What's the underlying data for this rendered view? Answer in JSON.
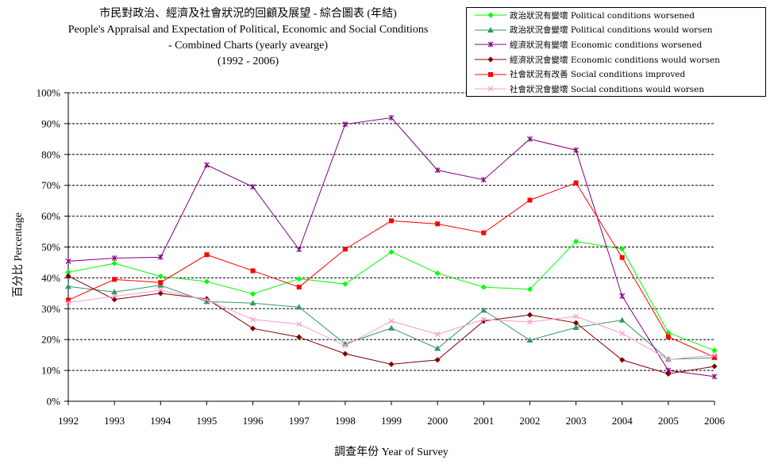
{
  "chart_data": {
    "type": "line",
    "title_lines": [
      "市民對政治、經濟及社會狀況的回顧及展望 - 綜合圖表 (年結)",
      "People's Appraisal and Expectation of Political, Economic and Social Conditions",
      "- Combined Charts  (yearly avearge)",
      "(1992 - 2006)"
    ],
    "xlabel": "調查年份 Year of Survey",
    "ylabel": "百分比 Percentage",
    "x": [
      1992,
      1993,
      1994,
      1995,
      1996,
      1997,
      1998,
      1999,
      2000,
      2001,
      2002,
      2003,
      2004,
      2005,
      2006
    ],
    "ylim": [
      0,
      100
    ],
    "y_ticks": [
      "0%",
      "10%",
      "20%",
      "30%",
      "40%",
      "50%",
      "60%",
      "70%",
      "80%",
      "90%",
      "100%"
    ],
    "grid": "horizontal dashed",
    "legend_position": "top-right",
    "series": [
      {
        "name": "政治狀況有變壞 Political conditions worsened",
        "color": "#00ff00",
        "marker": "diamond",
        "values": [
          41.8,
          44.7,
          40.5,
          38.8,
          34.8,
          39.7,
          38.0,
          48.4,
          41.5,
          37.0,
          36.3,
          51.8,
          49.4,
          22.2,
          16.5
        ]
      },
      {
        "name": "政治狀況會變壞 Political conditions would worsen",
        "color": "#339966",
        "marker": "triangle",
        "values": [
          37.2,
          35.4,
          37.6,
          32.3,
          31.8,
          30.5,
          18.6,
          23.7,
          17.1,
          29.5,
          19.8,
          23.9,
          26.3,
          13.6,
          14.1
        ]
      },
      {
        "name": "經濟狀況有變壞 Economic conditions worsened",
        "color": "#800080",
        "marker": "asterisk",
        "values": [
          45.4,
          46.4,
          46.7,
          76.6,
          69.5,
          49.2,
          89.8,
          91.9,
          74.9,
          71.8,
          85.0,
          81.4,
          34.1,
          10.0,
          8.0
        ]
      },
      {
        "name": "經濟狀況會變壞 Economic conditions would worsen",
        "color": "#800000",
        "marker": "diamond",
        "values": [
          40.6,
          33.0,
          35.0,
          33.2,
          23.6,
          20.8,
          15.4,
          12.0,
          13.4,
          26.0,
          28.0,
          25.4,
          13.4,
          8.9,
          11.3
        ]
      },
      {
        "name": "社會狀況有改善 Social conditions improved",
        "color": "#ff0000",
        "marker": "square",
        "values": [
          32.8,
          39.5,
          38.5,
          47.5,
          42.3,
          37.0,
          49.3,
          58.5,
          57.5,
          54.6,
          65.2,
          70.8,
          46.6,
          20.9,
          14.3
        ]
      },
      {
        "name": "社會狀況會變壞 Social conditions would worsen",
        "color": "#ff99cc",
        "marker": "x",
        "values": [
          32.0,
          34.0,
          36.0,
          32.9,
          26.5,
          25.0,
          18.0,
          26.0,
          21.7,
          26.5,
          25.7,
          27.5,
          22.0,
          13.5,
          15.0
        ]
      }
    ]
  }
}
